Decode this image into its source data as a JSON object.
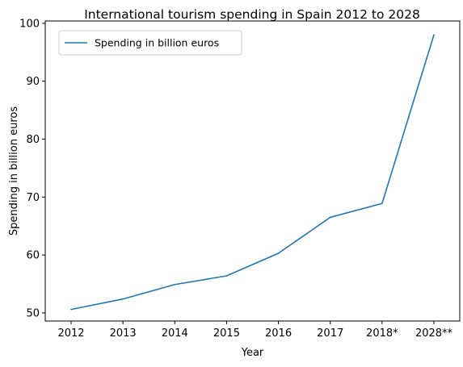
{
  "chart_data": {
    "type": "line",
    "title": "International tourism spending in Spain 2012 to 2028",
    "xlabel": "Year",
    "ylabel": "Spending in billion euros",
    "categories": [
      "2012",
      "2013",
      "2014",
      "2015",
      "2016",
      "2017",
      "2018*",
      "2028**"
    ],
    "series": [
      {
        "name": "Spending in billion euros",
        "color": "#1f77b4",
        "values": [
          50.6,
          52.4,
          54.9,
          56.4,
          60.3,
          66.5,
          68.9,
          98.0
        ]
      }
    ],
    "ylim": [
      48.6,
      100.4
    ],
    "yticks": [
      50,
      60,
      70,
      80,
      90,
      100
    ],
    "grid": false,
    "legend_position": "upper-left"
  }
}
